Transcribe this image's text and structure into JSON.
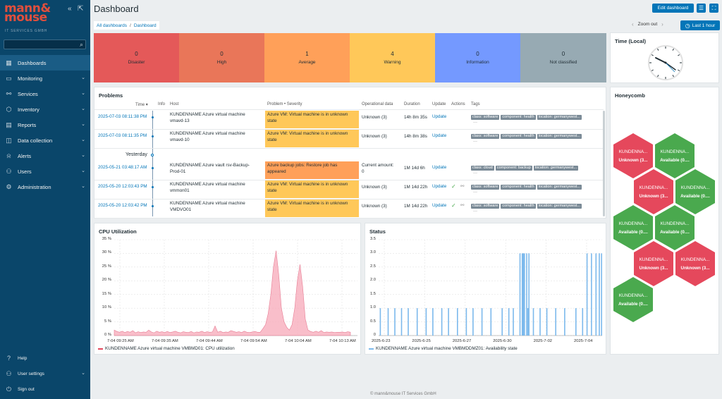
{
  "sidebar": {
    "logo": "mann& mouse",
    "logo_sub": "IT SERVICES GMBH",
    "collapse_glyph": "«",
    "kiosk_glyph": "⇱",
    "search_placeholder": "",
    "items": [
      {
        "label": "Dashboards",
        "icon": "dashboard-icon",
        "glyph": "▦",
        "active": true
      },
      {
        "label": "Monitoring",
        "icon": "monitoring-icon",
        "glyph": "▭"
      },
      {
        "label": "Services",
        "icon": "services-icon",
        "glyph": "⚯"
      },
      {
        "label": "Inventory",
        "icon": "inventory-icon",
        "glyph": "⬡"
      },
      {
        "label": "Reports",
        "icon": "reports-icon",
        "glyph": "▤"
      },
      {
        "label": "Data collection",
        "icon": "data-collection-icon",
        "glyph": "◫"
      },
      {
        "label": "Alerts",
        "icon": "alerts-icon",
        "glyph": "⍾"
      },
      {
        "label": "Users",
        "icon": "users-icon",
        "glyph": "⚇"
      },
      {
        "label": "Administration",
        "icon": "administration-icon",
        "glyph": "⚙"
      }
    ],
    "bottom": [
      {
        "label": "Help",
        "icon": "help-icon",
        "glyph": "?"
      },
      {
        "label": "User settings",
        "icon": "user-icon",
        "glyph": "⚇"
      },
      {
        "label": "Sign out",
        "icon": "sign-out-icon",
        "glyph": "⏻"
      }
    ]
  },
  "header": {
    "title": "Dashboard",
    "edit_label": "Edit dashboard",
    "list_glyph": "☰",
    "kiosk_glyph": "⛶",
    "breadcrumb": [
      "All dashboards",
      "Dashboard"
    ],
    "zoom_label": "Zoom out",
    "prev_glyph": "‹",
    "next_glyph": "›",
    "time_label": "Last 1 hour",
    "clock_glyph": "◷"
  },
  "severity": [
    {
      "count": "0",
      "label": "Disaster",
      "color": "#e45959"
    },
    {
      "count": "0",
      "label": "High",
      "color": "#e97659"
    },
    {
      "count": "1",
      "label": "Average",
      "color": "#ffa059"
    },
    {
      "count": "4",
      "label": "Warning",
      "color": "#ffc859"
    },
    {
      "count": "0",
      "label": "Information",
      "color": "#7499ff"
    },
    {
      "count": "0",
      "label": "Not classified",
      "color": "#97aab3"
    }
  ],
  "problems": {
    "title": "Problems",
    "columns": [
      "Time ▾",
      "Info",
      "Host",
      "Problem • Severity",
      "Operational data",
      "Duration",
      "Update",
      "Actions",
      "Tags"
    ],
    "yesterday": "Yesterday",
    "more": "···",
    "check_glyph": "✓",
    "action_glyph": "⚯",
    "rows": [
      {
        "time": "2025-07-03 08:11:38 PM",
        "host": [
          "KUNDENNAME Azure virtual machine",
          "vmavd-13"
        ],
        "problem": [
          "Azure VM: Virtual machine is in unknown",
          "state"
        ],
        "sev_color": "#ffc859",
        "opdata": [
          "Unknown (3)"
        ],
        "duration": "14h 8m 35s",
        "update": "Update",
        "actions": false,
        "tags": [
          "class: software",
          "component: health",
          "location: germanywest..."
        ]
      },
      {
        "time": "2025-07-03 08:11:35 PM",
        "host": [
          "KUNDENNAME Azure virtual machine",
          "vmavd-10"
        ],
        "problem": [
          "Azure VM: Virtual machine is in unknown",
          "state"
        ],
        "sev_color": "#ffc859",
        "opdata": [
          "Unknown (3)"
        ],
        "duration": "14h 8m 38s",
        "update": "Update",
        "actions": false,
        "tags": [
          "class: software",
          "component: health",
          "location: germanywest..."
        ]
      },
      {
        "time": "2025-05-21 03:48:17 AM",
        "host": [
          "KUNDENNAME Azure vault rsv-Backup-",
          "Prod-01"
        ],
        "problem": [
          "Azure backup jobs: Restore job has",
          "appeared"
        ],
        "sev_color": "#ffa059",
        "opdata": [
          "Current amount:",
          "0"
        ],
        "duration": "1M 14d 6h",
        "update": "Update",
        "actions": false,
        "tags": [
          "class: cloud",
          "component: backup",
          "location: germanywest..."
        ]
      },
      {
        "time": "2025-05-20 12:03:43 PM",
        "host": [
          "KUNDENNAME Azure virtual machine",
          "vmmon01"
        ],
        "problem": [
          "Azure VM: Virtual machine is in unknown",
          "state"
        ],
        "sev_color": "#ffc859",
        "opdata": [
          "Unknown (3)"
        ],
        "duration": "1M 14d 22h",
        "update": "Update",
        "actions": true,
        "tags": [
          "class: software",
          "component: health",
          "location: germanywest..."
        ]
      },
      {
        "time": "2025-05-20 12:03:42 PM",
        "host": [
          "KUNDENNAME Azure virtual machine",
          "VMDVO01"
        ],
        "problem": [
          "Azure VM: Virtual machine is in unknown",
          "state"
        ],
        "sev_color": "#ffc859",
        "opdata": [
          "Unknown (3)"
        ],
        "duration": "1M 14d 22h",
        "update": "Update",
        "actions": true,
        "tags": [
          "class: software",
          "component: health",
          "location: germanywest..."
        ]
      }
    ]
  },
  "clock": {
    "title": "Time (Local)"
  },
  "honeycomb": {
    "title": "Honeycomb",
    "cells": [
      {
        "name": "KUNDENNA...",
        "value": "Unknown (3...",
        "color": "#e5485c"
      },
      {
        "name": "KUNDENNA...",
        "value": "Available (0....",
        "color": "#4aa94e"
      },
      {
        "name": "KUNDENNA...",
        "value": "Unknown (3...",
        "color": "#e5485c"
      },
      {
        "name": "KUNDENNA...",
        "value": "Available (0....",
        "color": "#4aa94e"
      },
      {
        "name": "KUNDENNA...",
        "value": "Available (0....",
        "color": "#4aa94e"
      },
      {
        "name": "KUNDENNA...",
        "value": "Available (0....",
        "color": "#4aa94e"
      },
      {
        "name": "KUNDENNA...",
        "value": "Unknown (3...",
        "color": "#e5485c"
      },
      {
        "name": "KUNDENNA...",
        "value": "Unknown (3...",
        "color": "#e5485c"
      },
      {
        "name": "KUNDENNA...",
        "value": "Available (0....",
        "color": "#4aa94e"
      }
    ]
  },
  "chart_data": [
    {
      "type": "area",
      "title": "CPU Utilization",
      "y_ticks": [
        "35 %",
        "30 %",
        "25 %",
        "20 %",
        "15 %",
        "10 %",
        "5 %",
        "0 %"
      ],
      "x_ticks": [
        "7-04 09:25 AM",
        "7-04 09:35 AM",
        "7-04 09:44 AM",
        "7-04 09:54 AM",
        "7-04 10:04 AM",
        "7-04 10:13 AM"
      ],
      "ylim": [
        0,
        35
      ],
      "series": [
        {
          "name": "KUNDENNAME Azure virtual machine VMBMD01: CPU utilization",
          "color": "#f7a8b8",
          "values": [
            2,
            1.5,
            1.2,
            1.6,
            1.1,
            1.5,
            1.2,
            1.8,
            1,
            1.4,
            1.1,
            1.3,
            1.2,
            2,
            1.3,
            1,
            1.6,
            1.2,
            1.4,
            1.1,
            1.5,
            1.1,
            1.3,
            1.6,
            1.2,
            1,
            1.4,
            1.2,
            1.1,
            1.5,
            1,
            1.3,
            1.2,
            1.6,
            1.1,
            1.4,
            1.2,
            1.3,
            3.5,
            1.2,
            1.6,
            1.1,
            1.3,
            1.2,
            1.8,
            1.5,
            1.2,
            1.4,
            1.1,
            1.6,
            1.2,
            1.1,
            1.3,
            1.5,
            1.2,
            1.2,
            2.5,
            4,
            8,
            15,
            25,
            31,
            22,
            10,
            5,
            3,
            2,
            4,
            10,
            20,
            26,
            18,
            6,
            2,
            1.5,
            1.2,
            1.6,
            1.2,
            1.8,
            1.1,
            1.3,
            1.2,
            1.3,
            1.1,
            1.2,
            1.2,
            1.3,
            1.1,
            1.4,
            1.2
          ]
        }
      ]
    },
    {
      "type": "bar",
      "title": "Status",
      "y_ticks": [
        "3.5",
        "3.0",
        "2.5",
        "2.0",
        "1.5",
        "1.0",
        "0.5",
        "0"
      ],
      "x_ticks": [
        "2025-6-23",
        "2025-6-25",
        "2025-6-27",
        "2025-6-30",
        "2025-7-02",
        "2025-7-04"
      ],
      "ylim": [
        0,
        3.5
      ],
      "series": [
        {
          "name": "KUNDENNAME Azure virtual machine VMBMDDMZ01: Availability state",
          "color": "#7cb9ec",
          "points": [
            [
              0.005,
              1
            ],
            [
              0.04,
              1
            ],
            [
              0.07,
              1
            ],
            [
              0.1,
              1
            ],
            [
              0.13,
              1
            ],
            [
              0.17,
              1
            ],
            [
              0.21,
              1
            ],
            [
              0.24,
              1
            ],
            [
              0.28,
              1
            ],
            [
              0.31,
              1
            ],
            [
              0.35,
              1
            ],
            [
              0.39,
              1
            ],
            [
              0.42,
              1
            ],
            [
              0.46,
              1
            ],
            [
              0.5,
              1
            ],
            [
              0.55,
              1
            ],
            [
              0.58,
              1
            ],
            [
              0.6,
              1
            ],
            [
              0.63,
              3
            ],
            [
              0.64,
              3
            ],
            [
              0.645,
              3
            ],
            [
              0.65,
              3
            ],
            [
              0.66,
              3
            ],
            [
              0.665,
              1
            ],
            [
              0.67,
              3
            ],
            [
              0.69,
              1
            ],
            [
              0.72,
              1
            ],
            [
              0.75,
              1
            ],
            [
              0.79,
              1
            ],
            [
              0.83,
              1
            ],
            [
              0.88,
              1
            ],
            [
              0.91,
              1
            ],
            [
              0.93,
              3
            ],
            [
              0.95,
              3
            ],
            [
              0.97,
              3
            ],
            [
              0.985,
              3
            ],
            [
              0.995,
              3
            ]
          ]
        }
      ]
    }
  ],
  "footer": "© mann&mouse IT Services GmbH"
}
